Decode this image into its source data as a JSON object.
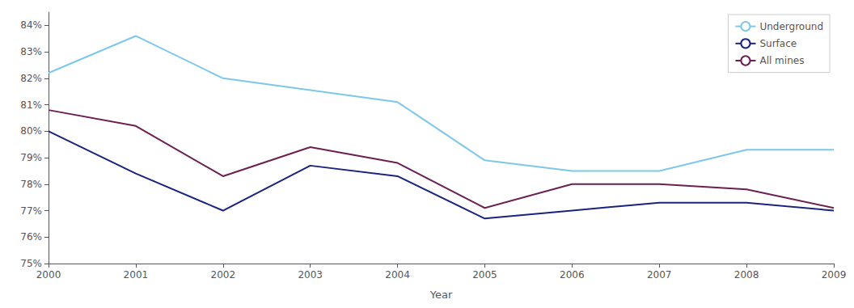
{
  "chart_data": {
    "type": "line",
    "xlabel": "Year",
    "x": [
      2000,
      2001,
      2002,
      2003,
      2004,
      2005,
      2006,
      2007,
      2008,
      2009
    ],
    "xlim": [
      2000,
      2009
    ],
    "xticks": [
      2000,
      2001,
      2002,
      2003,
      2004,
      2005,
      2006,
      2007,
      2008,
      2009
    ],
    "ylim": [
      75,
      84.5
    ],
    "yticks": [
      {
        "value": 75,
        "label": "75%"
      },
      {
        "value": 76,
        "label": "76%"
      },
      {
        "value": 77,
        "label": "77%"
      },
      {
        "value": 78,
        "label": "78%"
      },
      {
        "value": 79,
        "label": "79%"
      },
      {
        "value": 80,
        "label": "80%"
      },
      {
        "value": 81,
        "label": "81%"
      },
      {
        "value": 82,
        "label": "82%"
      },
      {
        "value": 83,
        "label": "83%"
      },
      {
        "value": 84,
        "label": "84%"
      }
    ],
    "series": [
      {
        "name": "Underground",
        "color": "#7DC8E8",
        "values": [
          82.2,
          83.6,
          82.0,
          81.55,
          81.1,
          78.9,
          78.5,
          78.5,
          79.3,
          79.3
        ]
      },
      {
        "name": "Surface",
        "color": "#1a237e",
        "values": [
          80.0,
          78.4,
          77.0,
          78.7,
          78.3,
          76.7,
          77.0,
          77.3,
          77.3,
          77.0
        ]
      },
      {
        "name": "All mines",
        "color": "#6b2050",
        "values": [
          80.8,
          80.2,
          78.3,
          79.4,
          78.8,
          77.1,
          78.0,
          78.0,
          77.8,
          77.1
        ]
      }
    ],
    "grid": false,
    "legend": "upper right"
  }
}
